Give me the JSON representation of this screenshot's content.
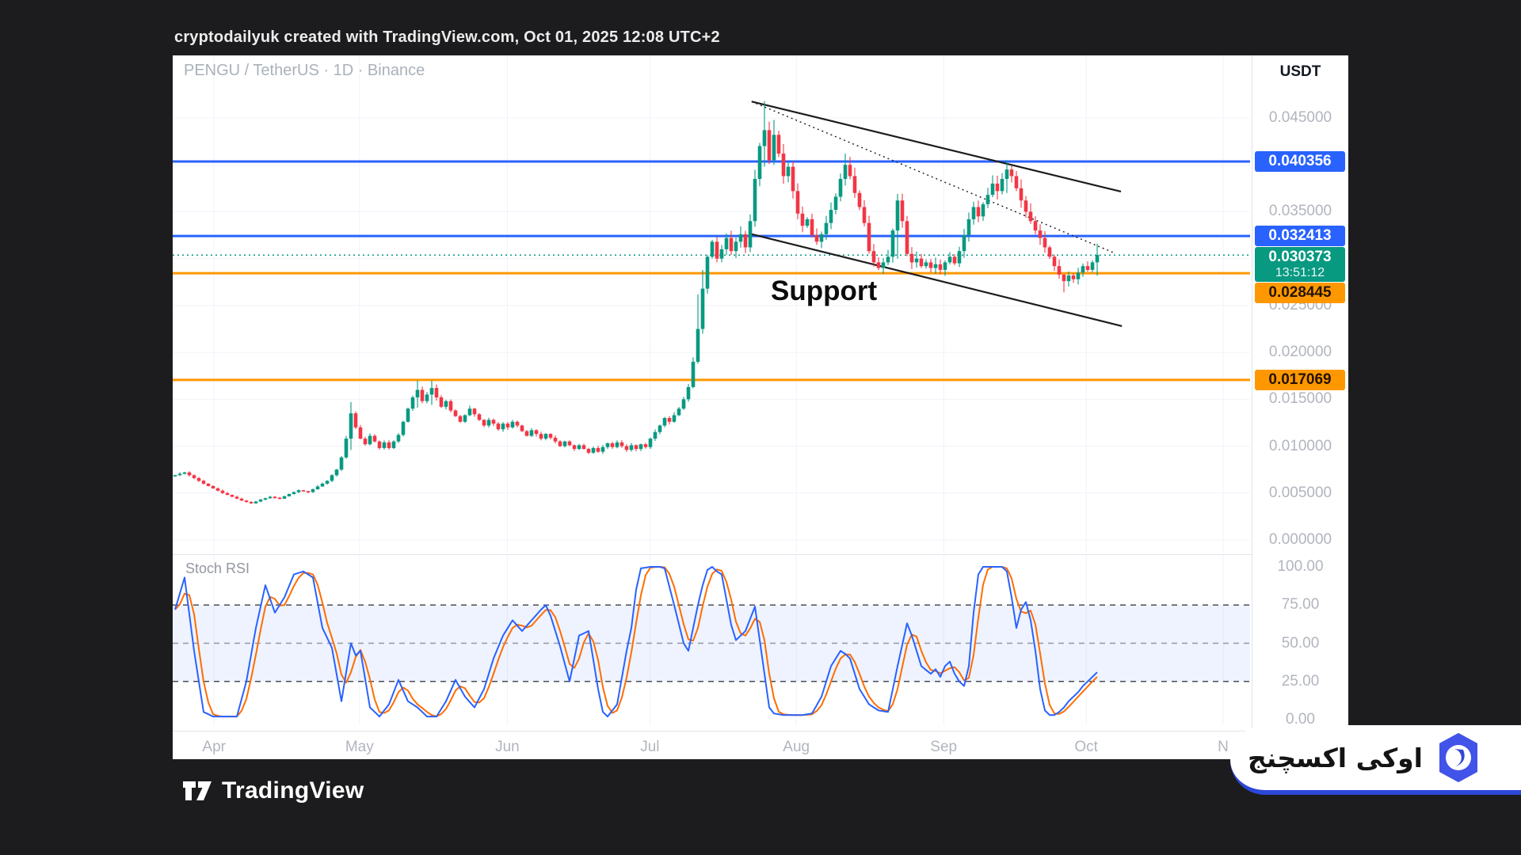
{
  "header": {
    "caption": "cryptodailyuk created with TradingView.com, Oct 01, 2025 12:08 UTC+2"
  },
  "chart": {
    "title": "PENGU / TetherUS · 1D · Binance",
    "axis_currency_label": "USDT",
    "support_label": "Support"
  },
  "indicator": {
    "label": "Stoch RSI"
  },
  "footer": {
    "tradingview_label": "TradingView"
  },
  "brand": {
    "name_fa": "اوکی اکسچنج",
    "hex_color": "#4153e8",
    "underline_color": "#2b48d8"
  },
  "chart_data": {
    "type": "candlestick_with_oscillator",
    "symbol": "PENGU / TetherUS",
    "interval": "1D",
    "exchange": "Binance",
    "quote_currency": "USDT",
    "price_axis_range": [
      0.0,
      0.0475
    ],
    "price_ticks": [
      {
        "label": "0.045000",
        "price": 0.045
      },
      {
        "label": "0.035000",
        "price": 0.035
      },
      {
        "label": "0.025000",
        "price": 0.025
      },
      {
        "label": "0.020000",
        "price": 0.02
      },
      {
        "label": "0.015000",
        "price": 0.015
      },
      {
        "label": "0.010000",
        "price": 0.01
      },
      {
        "label": "0.005000",
        "price": 0.005
      },
      {
        "label": "0.000000",
        "price": 0.0
      }
    ],
    "grid_prices": [
      0.045,
      0.04,
      0.035,
      0.03,
      0.025,
      0.02,
      0.015,
      0.01,
      0.005,
      0.0
    ],
    "horizontal_lines": [
      {
        "label": "0.040356",
        "price": 0.040356,
        "color": "#2962ff",
        "style": "solid"
      },
      {
        "label": "0.032413",
        "price": 0.032413,
        "color": "#2962ff",
        "style": "solid"
      },
      {
        "label": "0.030373",
        "price": 0.030373,
        "color": "#089981",
        "style": "dashed",
        "role": "current-price",
        "countdown": "13:51:12"
      },
      {
        "label": "0.028445",
        "price": 0.028445,
        "color": "#ff9800",
        "style": "solid",
        "role": "support"
      },
      {
        "label": "0.017069",
        "price": 0.017069,
        "color": "#ff9800",
        "style": "solid"
      }
    ],
    "trendlines": [
      {
        "x1_day": 121.3,
        "price1": 0.04675,
        "x2_day": 199.0,
        "price2": 0.03715,
        "style": "solid"
      },
      {
        "x1_day": 121.3,
        "price1": 0.04675,
        "x2_day": 197.8,
        "price2": 0.03056,
        "style": "dotted"
      },
      {
        "x1_day": 120.8,
        "price1": 0.03267,
        "x2_day": 199.2,
        "price2": 0.0228,
        "style": "solid"
      }
    ],
    "months": [
      {
        "label": "Apr",
        "day": 8.2
      },
      {
        "label": "May",
        "day": 38.8
      },
      {
        "label": "Jun",
        "day": 69.9
      },
      {
        "label": "Jul",
        "day": 99.9
      },
      {
        "label": "Aug",
        "day": 130.7
      },
      {
        "label": "Sep",
        "day": 161.7
      },
      {
        "label": "Oct",
        "day": 191.7
      },
      {
        "label": "N",
        "day": 220.5
      }
    ],
    "candle_up_color": "#089981",
    "candle_down_color": "#f23645",
    "close_waypoints": [
      [
        0,
        0.0069
      ],
      [
        2,
        0.0072
      ],
      [
        4,
        0.0066
      ],
      [
        6,
        0.006
      ],
      [
        8,
        0.0055
      ],
      [
        10,
        0.005
      ],
      [
        12,
        0.0046
      ],
      [
        14,
        0.0042
      ],
      [
        16,
        0.0039
      ],
      [
        18,
        0.0043
      ],
      [
        20,
        0.0046
      ],
      [
        22,
        0.0044
      ],
      [
        24,
        0.0049
      ],
      [
        26,
        0.0053
      ],
      [
        28,
        0.0051
      ],
      [
        30,
        0.0057
      ],
      [
        32,
        0.0063
      ],
      [
        34,
        0.0075
      ],
      [
        35,
        0.0088
      ],
      [
        36,
        0.0108
      ],
      [
        37,
        0.0135
      ],
      [
        38,
        0.012
      ],
      [
        39,
        0.0108
      ],
      [
        40,
        0.0102
      ],
      [
        41,
        0.0111
      ],
      [
        42,
        0.0105
      ],
      [
        43,
        0.0098
      ],
      [
        44,
        0.0104
      ],
      [
        45,
        0.0098
      ],
      [
        46,
        0.0105
      ],
      [
        47,
        0.0112
      ],
      [
        48,
        0.0126
      ],
      [
        49,
        0.014
      ],
      [
        50,
        0.0152
      ],
      [
        51,
        0.016
      ],
      [
        52,
        0.0148
      ],
      [
        53,
        0.0155
      ],
      [
        54,
        0.0162
      ],
      [
        55,
        0.0152
      ],
      [
        56,
        0.0142
      ],
      [
        57,
        0.0148
      ],
      [
        58,
        0.0138
      ],
      [
        59,
        0.0132
      ],
      [
        60,
        0.0126
      ],
      [
        61,
        0.0133
      ],
      [
        62,
        0.014
      ],
      [
        63,
        0.0134
      ],
      [
        64,
        0.0128
      ],
      [
        65,
        0.0122
      ],
      [
        66,
        0.0128
      ],
      [
        67,
        0.0124
      ],
      [
        68,
        0.0118
      ],
      [
        69,
        0.0124
      ],
      [
        70,
        0.012
      ],
      [
        71,
        0.0126
      ],
      [
        72,
        0.0122
      ],
      [
        73,
        0.0116
      ],
      [
        74,
        0.0111
      ],
      [
        75,
        0.0117
      ],
      [
        76,
        0.0113
      ],
      [
        77,
        0.0108
      ],
      [
        78,
        0.0113
      ],
      [
        79,
        0.0109
      ],
      [
        80,
        0.0105
      ],
      [
        81,
        0.01
      ],
      [
        82,
        0.0105
      ],
      [
        83,
        0.0101
      ],
      [
        84,
        0.0097
      ],
      [
        85,
        0.0101
      ],
      [
        86,
        0.0097
      ],
      [
        87,
        0.0093
      ],
      [
        88,
        0.0098
      ],
      [
        89,
        0.0094
      ],
      [
        90,
        0.0099
      ],
      [
        91,
        0.0103
      ],
      [
        92,
        0.0099
      ],
      [
        93,
        0.0104
      ],
      [
        94,
        0.01
      ],
      [
        95,
        0.0096
      ],
      [
        96,
        0.0101
      ],
      [
        97,
        0.0097
      ],
      [
        98,
        0.0102
      ],
      [
        99,
        0.0099
      ],
      [
        100,
        0.0108
      ],
      [
        101,
        0.0115
      ],
      [
        102,
        0.0122
      ],
      [
        103,
        0.013
      ],
      [
        104,
        0.0126
      ],
      [
        105,
        0.0133
      ],
      [
        106,
        0.014
      ],
      [
        107,
        0.015
      ],
      [
        108,
        0.0163
      ],
      [
        109,
        0.019
      ],
      [
        110,
        0.0225
      ],
      [
        111,
        0.0268
      ],
      [
        112,
        0.0302
      ],
      [
        113,
        0.0318
      ],
      [
        114,
        0.03
      ],
      [
        115,
        0.031
      ],
      [
        116,
        0.0322
      ],
      [
        117,
        0.0308
      ],
      [
        118,
        0.0318
      ],
      [
        119,
        0.0326
      ],
      [
        120,
        0.0312
      ],
      [
        121,
        0.034
      ],
      [
        122,
        0.0385
      ],
      [
        123,
        0.042
      ],
      [
        124,
        0.0437
      ],
      [
        125,
        0.0405
      ],
      [
        126,
        0.0432
      ],
      [
        127,
        0.0412
      ],
      [
        128,
        0.0388
      ],
      [
        129,
        0.0398
      ],
      [
        130,
        0.0372
      ],
      [
        131,
        0.0348
      ],
      [
        132,
        0.0335
      ],
      [
        133,
        0.0342
      ],
      [
        134,
        0.0325
      ],
      [
        135,
        0.0318
      ],
      [
        136,
        0.0326
      ],
      [
        137,
        0.0338
      ],
      [
        138,
        0.0352
      ],
      [
        139,
        0.0366
      ],
      [
        140,
        0.0385
      ],
      [
        141,
        0.04
      ],
      [
        142,
        0.0388
      ],
      [
        143,
        0.037
      ],
      [
        144,
        0.0355
      ],
      [
        145,
        0.0338
      ],
      [
        146,
        0.0308
      ],
      [
        147,
        0.0296
      ],
      [
        148,
        0.029
      ],
      [
        149,
        0.0296
      ],
      [
        150,
        0.0302
      ],
      [
        151,
        0.033
      ],
      [
        152,
        0.0362
      ],
      [
        153,
        0.034
      ],
      [
        154,
        0.0305
      ],
      [
        155,
        0.0296
      ],
      [
        156,
        0.03
      ],
      [
        157,
        0.0292
      ],
      [
        158,
        0.0296
      ],
      [
        159,
        0.029
      ],
      [
        160,
        0.0294
      ],
      [
        161,
        0.0288
      ],
      [
        162,
        0.0296
      ],
      [
        163,
        0.0302
      ],
      [
        164,
        0.0295
      ],
      [
        165,
        0.0308
      ],
      [
        166,
        0.0325
      ],
      [
        167,
        0.0342
      ],
      [
        168,
        0.0355
      ],
      [
        169,
        0.0345
      ],
      [
        170,
        0.0358
      ],
      [
        171,
        0.0368
      ],
      [
        172,
        0.038
      ],
      [
        173,
        0.0372
      ],
      [
        174,
        0.0385
      ],
      [
        175,
        0.0395
      ],
      [
        176,
        0.0388
      ],
      [
        177,
        0.0375
      ],
      [
        178,
        0.0362
      ],
      [
        179,
        0.035
      ],
      [
        180,
        0.034
      ],
      [
        181,
        0.033
      ],
      [
        182,
        0.0322
      ],
      [
        183,
        0.0312
      ],
      [
        184,
        0.0302
      ],
      [
        185,
        0.0292
      ],
      [
        186,
        0.0283
      ],
      [
        187,
        0.0276
      ],
      [
        188,
        0.0282
      ],
      [
        189,
        0.0278
      ],
      [
        190,
        0.0285
      ],
      [
        191,
        0.0292
      ],
      [
        192,
        0.0288
      ],
      [
        193,
        0.0296
      ],
      [
        194,
        0.0304
      ]
    ],
    "wick_overrides": {
      "37": [
        0.0147,
        0.0096
      ],
      "51": [
        0.017,
        0.0141
      ],
      "54": [
        0.017,
        0.0144
      ],
      "110": [
        0.0262,
        0.0188
      ],
      "111": [
        0.0288,
        0.022
      ],
      "124": [
        0.0468,
        0.0398
      ],
      "126": [
        0.0448,
        0.04
      ],
      "141": [
        0.0412,
        0.0378
      ],
      "152": [
        0.0369,
        0.03
      ],
      "175": [
        0.0405,
        0.037
      ],
      "187": [
        0.0276,
        0.0264
      ],
      "194": [
        0.0316,
        0.0282
      ]
    },
    "stoch_rsi": {
      "range": [
        0,
        100
      ],
      "ticks": [
        "100.00",
        "75.00",
        "50.00",
        "25.00",
        "0.00"
      ],
      "band": [
        25,
        75
      ],
      "mid_line": 50,
      "k_color": "#2962ff",
      "d_color": "#ff6d00",
      "d_line": "sma3_of_k",
      "k_waypoints": [
        [
          0,
          72
        ],
        [
          2,
          93
        ],
        [
          4,
          45
        ],
        [
          6,
          5
        ],
        [
          8,
          2
        ],
        [
          13,
          2
        ],
        [
          15,
          25
        ],
        [
          17,
          60
        ],
        [
          19,
          88
        ],
        [
          21,
          70
        ],
        [
          23,
          80
        ],
        [
          25,
          95
        ],
        [
          27,
          97
        ],
        [
          29,
          93
        ],
        [
          31,
          60
        ],
        [
          33,
          47
        ],
        [
          35,
          12
        ],
        [
          37,
          50
        ],
        [
          38,
          42
        ],
        [
          39,
          45
        ],
        [
          41,
          8
        ],
        [
          43,
          2
        ],
        [
          45,
          10
        ],
        [
          47,
          26
        ],
        [
          49,
          12
        ],
        [
          51,
          8
        ],
        [
          53,
          2
        ],
        [
          55,
          2
        ],
        [
          57,
          12
        ],
        [
          59,
          26
        ],
        [
          61,
          15
        ],
        [
          63,
          8
        ],
        [
          65,
          20
        ],
        [
          67,
          40
        ],
        [
          69,
          55
        ],
        [
          71,
          65
        ],
        [
          73,
          58
        ],
        [
          75,
          65
        ],
        [
          77,
          72
        ],
        [
          78,
          75
        ],
        [
          79,
          68
        ],
        [
          81,
          48
        ],
        [
          83,
          25
        ],
        [
          85,
          55
        ],
        [
          87,
          58
        ],
        [
          89,
          20
        ],
        [
          90,
          5
        ],
        [
          91,
          2
        ],
        [
          93,
          10
        ],
        [
          95,
          45
        ],
        [
          96,
          60
        ],
        [
          97,
          85
        ],
        [
          98,
          99
        ],
        [
          100,
          100
        ],
        [
          102,
          100
        ],
        [
          103,
          99
        ],
        [
          105,
          75
        ],
        [
          107,
          50
        ],
        [
          108,
          45
        ],
        [
          109,
          60
        ],
        [
          110,
          75
        ],
        [
          111,
          88
        ],
        [
          112,
          98
        ],
        [
          113,
          100
        ],
        [
          114,
          97
        ],
        [
          115,
          95
        ],
        [
          117,
          62
        ],
        [
          118,
          52
        ],
        [
          120,
          58
        ],
        [
          122,
          74
        ],
        [
          124,
          30
        ],
        [
          125,
          8
        ],
        [
          126,
          4
        ],
        [
          128,
          3
        ],
        [
          130,
          3
        ],
        [
          132,
          3
        ],
        [
          134,
          4
        ],
        [
          136,
          15
        ],
        [
          138,
          35
        ],
        [
          140,
          45
        ],
        [
          141,
          43
        ],
        [
          142,
          40
        ],
        [
          143,
          30
        ],
        [
          144,
          20
        ],
        [
          146,
          10
        ],
        [
          148,
          6
        ],
        [
          150,
          5
        ],
        [
          152,
          35
        ],
        [
          154,
          63
        ],
        [
          155,
          55
        ],
        [
          156,
          45
        ],
        [
          157,
          35
        ],
        [
          159,
          30
        ],
        [
          160,
          33
        ],
        [
          161,
          28
        ],
        [
          162,
          35
        ],
        [
          163,
          38
        ],
        [
          164,
          30
        ],
        [
          165,
          25
        ],
        [
          166,
          22
        ],
        [
          167,
          35
        ],
        [
          168,
          70
        ],
        [
          169,
          95
        ],
        [
          170,
          100
        ],
        [
          172,
          100
        ],
        [
          174,
          100
        ],
        [
          175,
          97
        ],
        [
          176,
          80
        ],
        [
          177,
          60
        ],
        [
          178,
          72
        ],
        [
          179,
          77
        ],
        [
          180,
          65
        ],
        [
          181,
          45
        ],
        [
          182,
          20
        ],
        [
          183,
          6
        ],
        [
          184,
          3
        ],
        [
          185,
          3
        ],
        [
          186,
          5
        ],
        [
          187,
          8
        ],
        [
          188,
          12
        ],
        [
          189,
          15
        ],
        [
          190,
          18
        ],
        [
          191,
          22
        ],
        [
          192,
          25
        ],
        [
          193,
          28
        ],
        [
          194,
          31
        ]
      ]
    }
  }
}
